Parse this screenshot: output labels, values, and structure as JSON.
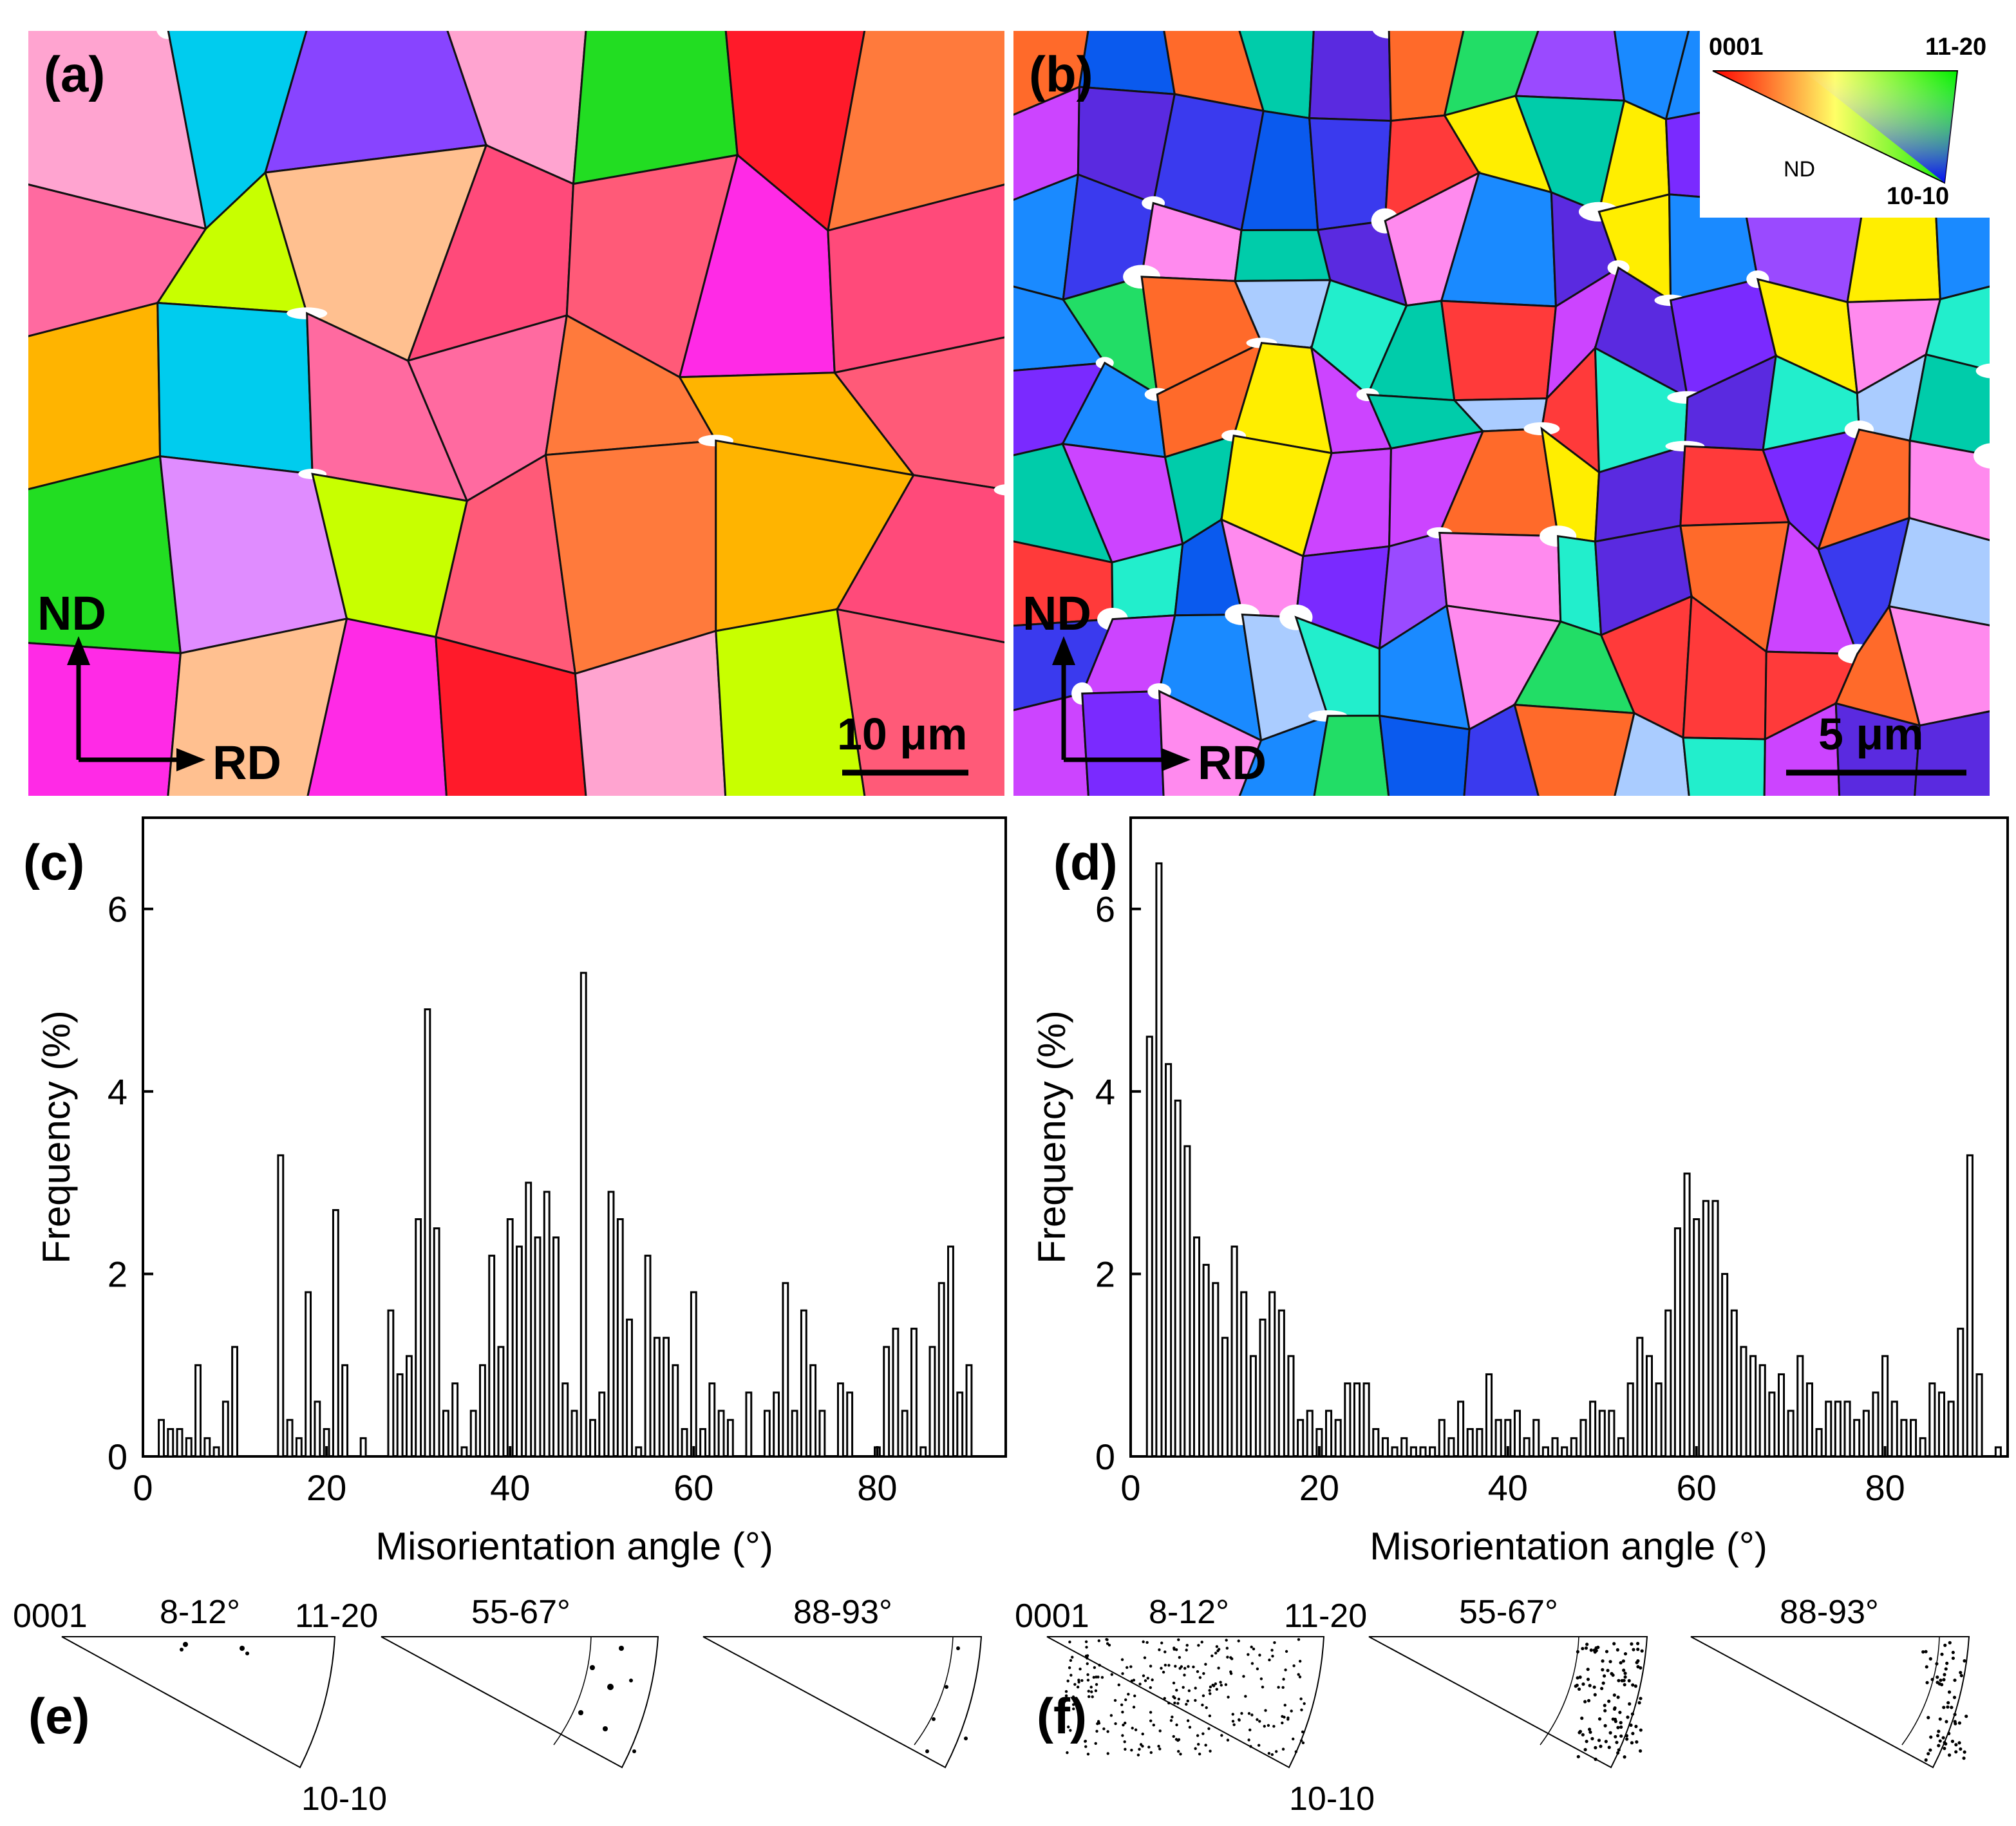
{
  "panels": {
    "a": {
      "letter": "(a)",
      "axis_nd": "ND",
      "axis_rd": "RD",
      "scale_bar": "10 μm"
    },
    "b": {
      "letter": "(b)",
      "axis_nd": "ND",
      "axis_rd": "RD",
      "scale_bar": "5 μm"
    },
    "c": {
      "letter": "(c)"
    },
    "d": {
      "letter": "(d)"
    },
    "e": {
      "letter": "(e)"
    },
    "f": {
      "letter": "(f)"
    }
  },
  "ipf_legend": {
    "top_left": "0001",
    "top_right": "11-20",
    "bottom_right": "10-10",
    "center": "ND"
  },
  "grain_map_colors": {
    "a": [
      "#ff5a78",
      "#ffb400",
      "#ff7a3c",
      "#c8ff00",
      "#ff1a2a",
      "#1a6ee6",
      "#ff2ae6",
      "#22dd22",
      "#ff4a7a",
      "#ff6aa0",
      "#ffa4d0",
      "#e08cff",
      "#00ccee",
      "#8844ff",
      "#ffc090"
    ],
    "b": [
      "#3a3aee",
      "#7a2aff",
      "#9a4aff",
      "#1a8aff",
      "#0a5aee",
      "#22dd66",
      "#00ccaa",
      "#ff3a3a",
      "#ff6a2a",
      "#ff8aee",
      "#cc44ff",
      "#aaccff",
      "#5a2ae0",
      "#22eecc",
      "#ffee00"
    ]
  },
  "chart_data": [
    {
      "id": "c",
      "type": "bar",
      "title": "",
      "xlabel": "Misorientation angle (°)",
      "ylabel": "Frequency (%)",
      "xlim": [
        0,
        94
      ],
      "ylim": [
        0,
        7
      ],
      "xticks": [
        0,
        20,
        40,
        60,
        80
      ],
      "yticks": [
        0,
        2,
        4,
        6
      ],
      "x": [
        2,
        3,
        4,
        5,
        6,
        7,
        8,
        9,
        10,
        15,
        16,
        17,
        18,
        19,
        20,
        21,
        22,
        24,
        27,
        28,
        29,
        30,
        31,
        32,
        33,
        34,
        35,
        36,
        37,
        38,
        39,
        40,
        41,
        42,
        43,
        44,
        45,
        46,
        47,
        48,
        49,
        50,
        51,
        52,
        53,
        54,
        55,
        56,
        57,
        58,
        59,
        60,
        61,
        62,
        63,
        64,
        66,
        68,
        69,
        70,
        71,
        72,
        73,
        74,
        76,
        77,
        80,
        81,
        82,
        83,
        84,
        85,
        86,
        87,
        88,
        89,
        90
      ],
      "values": [
        0.4,
        0.3,
        0.3,
        0.2,
        1.0,
        0.2,
        0.1,
        0.6,
        1.2,
        3.3,
        0.4,
        0.2,
        1.8,
        0.6,
        0.3,
        2.7,
        1.0,
        0.2,
        1.6,
        0.9,
        1.1,
        2.6,
        4.9,
        2.5,
        0.5,
        0.8,
        0.1,
        0.5,
        1.0,
        2.2,
        1.2,
        2.6,
        2.3,
        3.0,
        2.4,
        2.9,
        2.4,
        0.8,
        0.5,
        5.3,
        0.4,
        0.7,
        2.9,
        2.6,
        1.5,
        0.1,
        2.2,
        1.3,
        1.3,
        1.0,
        0.3,
        1.8,
        0.3,
        0.8,
        0.5,
        0.4,
        0.7,
        0.5,
        0.7,
        1.9,
        0.5,
        1.6,
        1.0,
        0.5,
        0.8,
        0.7,
        0.1,
        1.2,
        1.4,
        0.5,
        1.4,
        0.1,
        1.2,
        1.9,
        2.3,
        0.7,
        1.0
      ]
    },
    {
      "id": "d",
      "type": "bar",
      "title": "",
      "xlabel": "Misorientation angle (°)",
      "ylabel": "Frequency (%)",
      "xlim": [
        0,
        93
      ],
      "ylim": [
        0,
        7
      ],
      "xticks": [
        0,
        20,
        40,
        60,
        80
      ],
      "yticks": [
        0,
        2,
        4,
        6
      ],
      "x": [
        2,
        3,
        4,
        5,
        6,
        7,
        8,
        9,
        10,
        11,
        12,
        13,
        14,
        15,
        16,
        17,
        18,
        19,
        20,
        21,
        22,
        23,
        24,
        25,
        26,
        27,
        28,
        29,
        30,
        31,
        32,
        33,
        34,
        35,
        36,
        37,
        38,
        39,
        40,
        41,
        42,
        43,
        44,
        45,
        46,
        47,
        48,
        49,
        50,
        51,
        52,
        53,
        54,
        55,
        56,
        57,
        58,
        59,
        60,
        61,
        62,
        63,
        64,
        65,
        66,
        67,
        68,
        69,
        70,
        71,
        72,
        73,
        74,
        75,
        76,
        77,
        78,
        79,
        80,
        81,
        82,
        83,
        84,
        85,
        86,
        87,
        88,
        89,
        90,
        92
      ],
      "values": [
        4.6,
        6.5,
        4.3,
        3.9,
        3.4,
        2.4,
        2.1,
        1.9,
        1.3,
        2.3,
        1.8,
        1.1,
        1.5,
        1.8,
        1.6,
        1.1,
        0.4,
        0.5,
        0.3,
        0.5,
        0.4,
        0.8,
        0.8,
        0.8,
        0.3,
        0.2,
        0.1,
        0.2,
        0.1,
        0.1,
        0.1,
        0.4,
        0.2,
        0.6,
        0.3,
        0.3,
        0.9,
        0.4,
        0.4,
        0.5,
        0.2,
        0.4,
        0.1,
        0.2,
        0.1,
        0.2,
        0.4,
        0.6,
        0.5,
        0.5,
        0.2,
        0.8,
        1.3,
        1.1,
        0.8,
        1.6,
        2.5,
        3.1,
        2.6,
        2.8,
        2.8,
        2.0,
        1.6,
        1.2,
        1.1,
        1.0,
        0.7,
        0.9,
        0.5,
        1.1,
        0.8,
        0.3,
        0.6,
        0.6,
        0.6,
        0.4,
        0.5,
        0.7,
        1.1,
        0.6,
        0.4,
        0.4,
        0.2,
        0.8,
        0.7,
        0.6,
        1.4,
        3.3,
        0.9,
        0.1
      ]
    }
  ],
  "pole_figures": {
    "e": [
      {
        "range": "8-12°",
        "left": "0001",
        "right": "11-20",
        "bottom": "10-10"
      },
      {
        "range": "55-67°"
      },
      {
        "range": "88-93°"
      }
    ],
    "f": [
      {
        "range": "8-12°",
        "left": "0001",
        "right": "11-20",
        "bottom": "10-10"
      },
      {
        "range": "55-67°"
      },
      {
        "range": "88-93°"
      }
    ]
  }
}
